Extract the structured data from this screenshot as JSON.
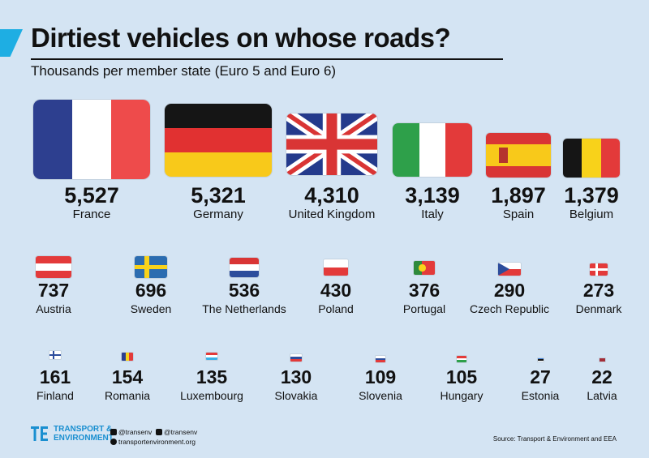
{
  "header": {
    "title": "Dirtiest vehicles on whose roads?",
    "subtitle": "Thousands per member state (Euro 5 and Euro 6)"
  },
  "chart_data": {
    "type": "pictogram",
    "title": "Dirtiest vehicles on whose roads?",
    "subtitle": "Thousands per member state (Euro 5 and Euro 6)",
    "categories": [
      "France",
      "Germany",
      "United Kingdom",
      "Italy",
      "Spain",
      "Belgium",
      "Austria",
      "Sweden",
      "The Netherlands",
      "Poland",
      "Portugal",
      "Czech Republic",
      "Denmark",
      "Finland",
      "Romania",
      "Luxembourg",
      "Slovakia",
      "Slovenia",
      "Hungary",
      "Estonia",
      "Latvia"
    ],
    "values": [
      5527,
      5321,
      4310,
      3139,
      1897,
      1379,
      737,
      696,
      536,
      430,
      376,
      290,
      273,
      161,
      154,
      135,
      130,
      109,
      105,
      27,
      22
    ],
    "value_labels": [
      "5,527",
      "5,321",
      "4,310",
      "3,139",
      "1,897",
      "1,379",
      "737",
      "696",
      "536",
      "430",
      "376",
      "290",
      "273",
      "161",
      "154",
      "135",
      "130",
      "109",
      "105",
      "27",
      "22"
    ],
    "flag_icons": [
      "france-flag",
      "germany-flag",
      "uk-flag",
      "italy-flag",
      "spain-flag",
      "belgium-flag",
      "austria-flag",
      "sweden-flag",
      "netherlands-flag",
      "poland-flag",
      "portugal-flag",
      "czech-flag",
      "denmark-flag",
      "finland-flag",
      "romania-flag",
      "luxembourg-flag",
      "slovakia-flag",
      "slovenia-flag",
      "hungary-flag",
      "estonia-flag",
      "latvia-flag"
    ]
  },
  "footer": {
    "logo_line1": "TRANSPORT &",
    "logo_line2": "ENVIRONMENT",
    "twitter": "@transenv",
    "facebook": "@transenv",
    "website": "transportenvironment.org",
    "source": "Source: Transport & Environment and EEA"
  },
  "colors": {
    "background": "#d4e4f3",
    "accent": "#1eaee3",
    "logo": "#1a8fd0"
  }
}
